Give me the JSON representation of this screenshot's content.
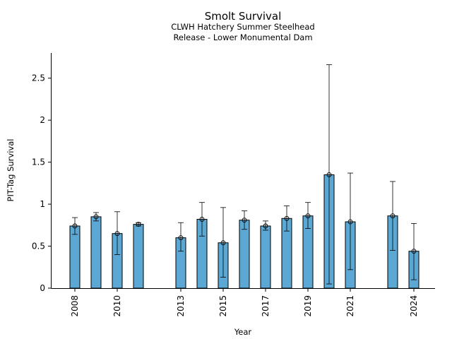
{
  "chart_data": {
    "type": "bar",
    "title": "Smolt Survival",
    "subtitle_lines": [
      "CLWH Hatchery Summer Steelhead",
      "Release - Lower Monumental Dam"
    ],
    "xlabel": "Year",
    "ylabel": "PIT-Tag Survival",
    "bar_color": "#5ba8d4",
    "ylim": [
      0,
      2.8
    ],
    "xlim": [
      2006.9,
      2025.0
    ],
    "y_ticks": [
      {
        "value": 0,
        "label": "0"
      },
      {
        "value": 0.5,
        "label": "0.5"
      },
      {
        "value": 1,
        "label": "1"
      },
      {
        "value": 1.5,
        "label": "1.5"
      },
      {
        "value": 2,
        "label": "2"
      },
      {
        "value": 2.5,
        "label": "2.5"
      }
    ],
    "x_ticks": [
      {
        "value": 2008,
        "label": "2008"
      },
      {
        "value": 2010,
        "label": "2010"
      },
      {
        "value": 2013,
        "label": "2013"
      },
      {
        "value": 2015,
        "label": "2015"
      },
      {
        "value": 2017,
        "label": "2017"
      },
      {
        "value": 2019,
        "label": "2019"
      },
      {
        "value": 2021,
        "label": "2021"
      },
      {
        "value": 2024,
        "label": "2024"
      }
    ],
    "points": [
      {
        "year": 2008,
        "value": 0.74,
        "low": 0.64,
        "high": 0.84
      },
      {
        "year": 2009,
        "value": 0.85,
        "low": 0.8,
        "high": 0.9
      },
      {
        "year": 2010,
        "value": 0.65,
        "low": 0.4,
        "high": 0.91
      },
      {
        "year": 2011,
        "value": 0.76,
        "low": 0.74,
        "high": 0.78
      },
      {
        "year": 2013,
        "value": 0.6,
        "low": 0.44,
        "high": 0.78
      },
      {
        "year": 2014,
        "value": 0.82,
        "low": 0.62,
        "high": 1.02
      },
      {
        "year": 2015,
        "value": 0.54,
        "low": 0.13,
        "high": 0.96
      },
      {
        "year": 2016,
        "value": 0.81,
        "low": 0.7,
        "high": 0.92
      },
      {
        "year": 2017,
        "value": 0.74,
        "low": 0.69,
        "high": 0.8
      },
      {
        "year": 2018,
        "value": 0.83,
        "low": 0.68,
        "high": 0.98
      },
      {
        "year": 2019,
        "value": 0.86,
        "low": 0.71,
        "high": 1.02
      },
      {
        "year": 2020,
        "value": 1.35,
        "low": 0.05,
        "high": 2.66
      },
      {
        "year": 2021,
        "value": 0.79,
        "low": 0.22,
        "high": 1.37
      },
      {
        "year": 2023,
        "value": 0.86,
        "low": 0.45,
        "high": 1.27
      },
      {
        "year": 2024,
        "value": 0.44,
        "low": 0.1,
        "high": 0.77
      }
    ]
  }
}
